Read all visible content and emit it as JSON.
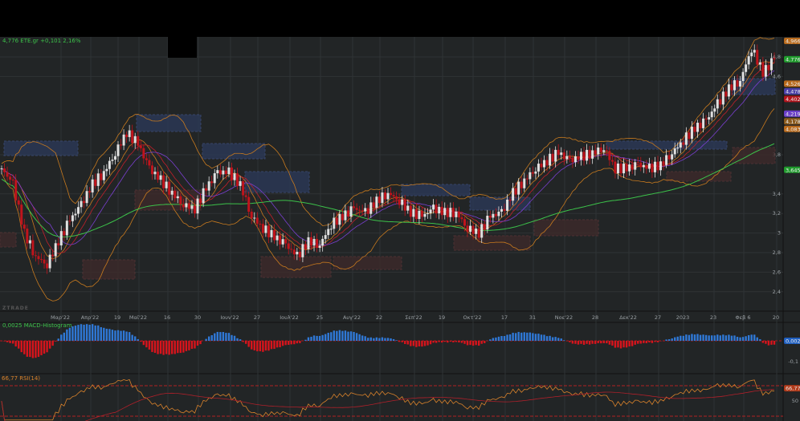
{
  "header": {
    "ticker_line": "4,776 ETE.gr +0,101 2,16%"
  },
  "logo": "ZTRADE",
  "macd": {
    "label": "0,0025 MACD-Histogram",
    "value_tag": "0,0025",
    "axis": [
      "-0,1"
    ]
  },
  "rsi": {
    "label": "66,77 RSI(14)",
    "value_tag": "66,77",
    "axis": [
      "50"
    ]
  },
  "colors": {
    "background": "#222526",
    "up": "#e0e0e0",
    "down": "#c0141c",
    "ma_long": "#3cc24a",
    "bollinger": "#c87a1e",
    "macd_pos": "#2f78d6",
    "macd_neg": "#d8141c",
    "rsi": "#d9822b",
    "rsi_bands": "#e02020"
  },
  "chart_data": {
    "type": "candlestick",
    "title": "",
    "symbol": "ETE.gr",
    "last": 4.776,
    "change": 0.101,
    "change_pct": 2.16,
    "ylim": [
      2.3,
      5.0
    ],
    "y_ticks": [
      "4,8",
      "4,6",
      "3,8",
      "3,4",
      "3,2",
      "3",
      "2,8",
      "2,6",
      "2,4"
    ],
    "y_tick_values": [
      4.8,
      4.6,
      3.8,
      3.4,
      3.2,
      3.0,
      2.8,
      2.6,
      2.4
    ],
    "price_tags": [
      {
        "text": "4,966",
        "color": "#b86a1c"
      },
      {
        "text": "4,776",
        "color": "#1f9a2c"
      },
      {
        "text": "4,526",
        "color": "#b86a1c"
      },
      {
        "text": "4,4784",
        "color": "#4a3fa8"
      },
      {
        "text": "4,402",
        "color": "#b0141c"
      },
      {
        "text": "4,2196",
        "color": "#6a3fc8"
      },
      {
        "text": "4,1782",
        "color": "#8a5a1c"
      },
      {
        "text": "4,083",
        "color": "#b86a1c"
      },
      {
        "text": "3,6459",
        "color": "#1f9a2c"
      }
    ],
    "price_tag_values": [
      4.966,
      4.776,
      4.526,
      4.4784,
      4.402,
      4.2196,
      4.1782,
      4.083,
      3.6459
    ],
    "x_labels": [
      "Μαρ'22",
      "Απρ'22",
      "19",
      "Μαϊ'22",
      "16",
      "30",
      "Ιουν'22",
      "27",
      "Ιουλ'22",
      "25",
      "Αυγ'22",
      "22",
      "Σεπ'22",
      "19",
      "Οκτ'22",
      "17",
      "31",
      "Νοε'22",
      "28",
      "Δεκ'22",
      "27",
      "2023",
      "23",
      "Φεβ 6",
      "20"
    ],
    "closes": [
      3.66,
      3.5,
      3.0,
      2.76,
      2.68,
      2.92,
      3.13,
      3.29,
      3.5,
      3.62,
      3.82,
      4.03,
      3.91,
      3.66,
      3.54,
      3.41,
      3.29,
      3.25,
      3.46,
      3.62,
      3.62,
      3.5,
      3.17,
      3.05,
      2.96,
      2.88,
      2.76,
      2.92,
      2.88,
      3.09,
      3.17,
      3.25,
      3.21,
      3.33,
      3.41,
      3.33,
      3.21,
      3.17,
      3.25,
      3.21,
      3.21,
      3.05,
      3.0,
      3.17,
      3.21,
      3.41,
      3.54,
      3.66,
      3.74,
      3.82,
      3.74,
      3.78,
      3.82,
      3.87,
      3.66,
      3.66,
      3.7,
      3.66,
      3.7,
      3.82,
      3.95,
      4.07,
      4.15,
      4.32,
      4.48,
      4.56,
      4.89,
      4.64,
      4.776
    ]
  }
}
